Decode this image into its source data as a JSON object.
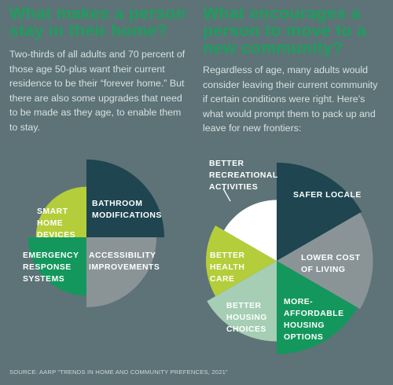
{
  "left": {
    "heading": "What makes a person stay in their home?",
    "body": "Two-thirds of all adults and 70 percent of those age 50-plus want their current residence to be their “forever home.” But there are also some upgrades that need to be made as they age, to enable them to stay."
  },
  "right": {
    "heading": "What encourages a person to move to a new community?",
    "body": "Regardless of age, many adults would consider leaving their current community if certain conditions were right. Here’s what would prompt them to pack up and leave for new frontiers:"
  },
  "source": "SOURCE: AARP “TRENDS IN HOME AND COMMUNITY PREFENCES, 2021”",
  "colors": {
    "background": "#5d7377",
    "heading": "#1d9e5e",
    "dark_slate": "#1e4550",
    "gray": "#8a9497",
    "green": "#14975c",
    "lime": "#b4cd3a",
    "light_green": "#a5ceb5",
    "white": "#ffffff"
  },
  "chart_data": [
    {
      "type": "pie",
      "title": "",
      "categories": [
        "BATHROOM MODIFICATIONS",
        "ACCESSIBILITY IMPROVEMENTS",
        "EMERGENCY RESPONSE SYSTEMS",
        "SMART HOME DEVICES"
      ],
      "values": [
        1,
        1,
        1,
        1
      ],
      "relative_sizes": [
        1.0,
        0.9,
        0.75,
        0.65
      ],
      "colors": [
        "#1e4550",
        "#8a9497",
        "#14975c",
        "#b4cd3a"
      ],
      "labels": [
        [
          "BATHROOM",
          "MODIFICATIONS"
        ],
        [
          "ACCESSIBILITY",
          "IMPROVEMENTS"
        ],
        [
          "EMERGENCY",
          "RESPONSE",
          "SYSTEMS"
        ],
        [
          "SMART",
          "HOME",
          "DEVICES"
        ]
      ],
      "label_colors": [
        "#ffffff",
        "#ffffff",
        "#ffffff",
        "#ffffff"
      ],
      "legend": "none"
    },
    {
      "type": "pie",
      "title": "",
      "categories": [
        "SAFER LOCALE",
        "LOWER COST OF LIVING",
        "MORE-AFFORDABLE HOUSING OPTIONS",
        "BETTER HOUSING CHOICES",
        "BETTER HEALTH CARE",
        "BETTER RECREATIONAL ACTIVITIES"
      ],
      "values": [
        1,
        1,
        1,
        1,
        1,
        1
      ],
      "relative_sizes": [
        1.0,
        0.98,
        0.95,
        0.82,
        0.72,
        0.62
      ],
      "colors": [
        "#1e4550",
        "#8a9497",
        "#14975c",
        "#a5ceb5",
        "#b4cd3a",
        "#ffffff"
      ],
      "labels": [
        [
          "SAFER LOCALE"
        ],
        [
          "LOWER COST",
          "OF LIVING"
        ],
        [
          "MORE-",
          "AFFORDABLE",
          "HOUSING",
          "OPTIONS"
        ],
        [
          "BETTER",
          "HOUSING",
          "CHOICES"
        ],
        [
          "BETTER",
          "HEALTH",
          "CARE"
        ],
        [
          "BETTER",
          "RECREATIONAL",
          "ACTIVITIES"
        ]
      ],
      "label_colors": [
        "#ffffff",
        "#ffffff",
        "#ffffff",
        "#ffffff",
        "#ffffff",
        "#ffffff"
      ],
      "legend": "none"
    }
  ]
}
